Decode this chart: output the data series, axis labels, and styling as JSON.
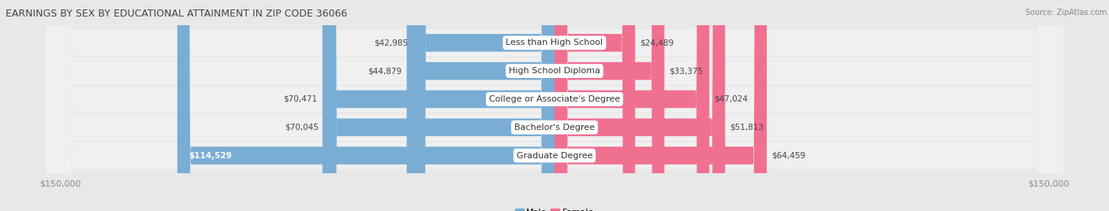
{
  "title": "EARNINGS BY SEX BY EDUCATIONAL ATTAINMENT IN ZIP CODE 36066",
  "source": "Source: ZipAtlas.com",
  "categories": [
    "Less than High School",
    "High School Diploma",
    "College or Associate's Degree",
    "Bachelor's Degree",
    "Graduate Degree"
  ],
  "male_values": [
    42985,
    44879,
    70471,
    70045,
    114529
  ],
  "female_values": [
    24489,
    33375,
    47024,
    51813,
    64459
  ],
  "male_color": "#7aadd4",
  "female_color": "#f07090",
  "max_value": 150000,
  "bg_color": "#e8e8e8",
  "row_light_color": "#f5f5f5",
  "row_dark_color": "#d8d8d8",
  "label_color": "#444444",
  "title_color": "#444444",
  "axis_label_color": "#888888",
  "value_inside_color": "#ffffff"
}
